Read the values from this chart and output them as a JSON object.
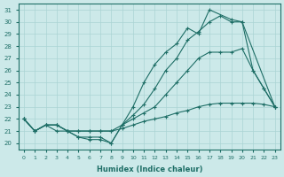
{
  "xlabel": "Humidex (Indice chaleur)",
  "xlim": [
    -0.5,
    23.5
  ],
  "ylim": [
    19.5,
    31.5
  ],
  "yticks": [
    20,
    21,
    22,
    23,
    24,
    25,
    26,
    27,
    28,
    29,
    30,
    31
  ],
  "xticks": [
    0,
    1,
    2,
    3,
    4,
    5,
    6,
    7,
    8,
    9,
    10,
    11,
    12,
    13,
    14,
    15,
    16,
    17,
    18,
    19,
    20,
    21,
    22,
    23
  ],
  "bg_color": "#cce9e9",
  "grid_color": "#aad4d4",
  "line_color": "#1e6e66",
  "line_steep_x": [
    0,
    1,
    2,
    3,
    4,
    5,
    6,
    7,
    8,
    9,
    10,
    11,
    12,
    13,
    14,
    15,
    16,
    17,
    19,
    20,
    23
  ],
  "line_steep_y": [
    22,
    21,
    21.5,
    21.5,
    21,
    20.5,
    20.5,
    20.5,
    20,
    21.5,
    23,
    25,
    26.5,
    27.5,
    28.2,
    29.5,
    29,
    31,
    30.2,
    30,
    23
  ],
  "line_midhigh_x": [
    0,
    1,
    2,
    3,
    4,
    5,
    6,
    7,
    8,
    9,
    10,
    11,
    12,
    13,
    14,
    15,
    16,
    17,
    18,
    19,
    20,
    21,
    22,
    23
  ],
  "line_midhigh_y": [
    22,
    21,
    21.5,
    21.5,
    21,
    21,
    21,
    21,
    21,
    21.5,
    22,
    22.5,
    23,
    24,
    25,
    26,
    27,
    27.5,
    27.5,
    27.5,
    27.8,
    26,
    24.5,
    23
  ],
  "line_gradual_x": [
    0,
    1,
    2,
    3,
    4,
    5,
    6,
    7,
    8,
    9,
    10,
    11,
    12,
    13,
    14,
    15,
    16,
    17,
    18,
    19,
    20,
    21,
    22,
    23
  ],
  "line_gradual_y": [
    22,
    21,
    21.5,
    21.5,
    21,
    21,
    21,
    21,
    21,
    21.2,
    21.5,
    21.8,
    22,
    22.2,
    22.5,
    22.7,
    23,
    23.2,
    23.3,
    23.3,
    23.3,
    23.3,
    23.2,
    23
  ],
  "line_zigzag_x": [
    0,
    1,
    2,
    3,
    4,
    5,
    6,
    7,
    8,
    9,
    10,
    11,
    12,
    13,
    14,
    15,
    16,
    17,
    18,
    19,
    20,
    21,
    22,
    23
  ],
  "line_zigzag_y": [
    22,
    21,
    21.5,
    21,
    21,
    20.5,
    20.3,
    20.3,
    20,
    21.5,
    22.3,
    23.2,
    24.5,
    26,
    27,
    28.5,
    29.2,
    30,
    30.5,
    30,
    30,
    26,
    24.5,
    23
  ]
}
